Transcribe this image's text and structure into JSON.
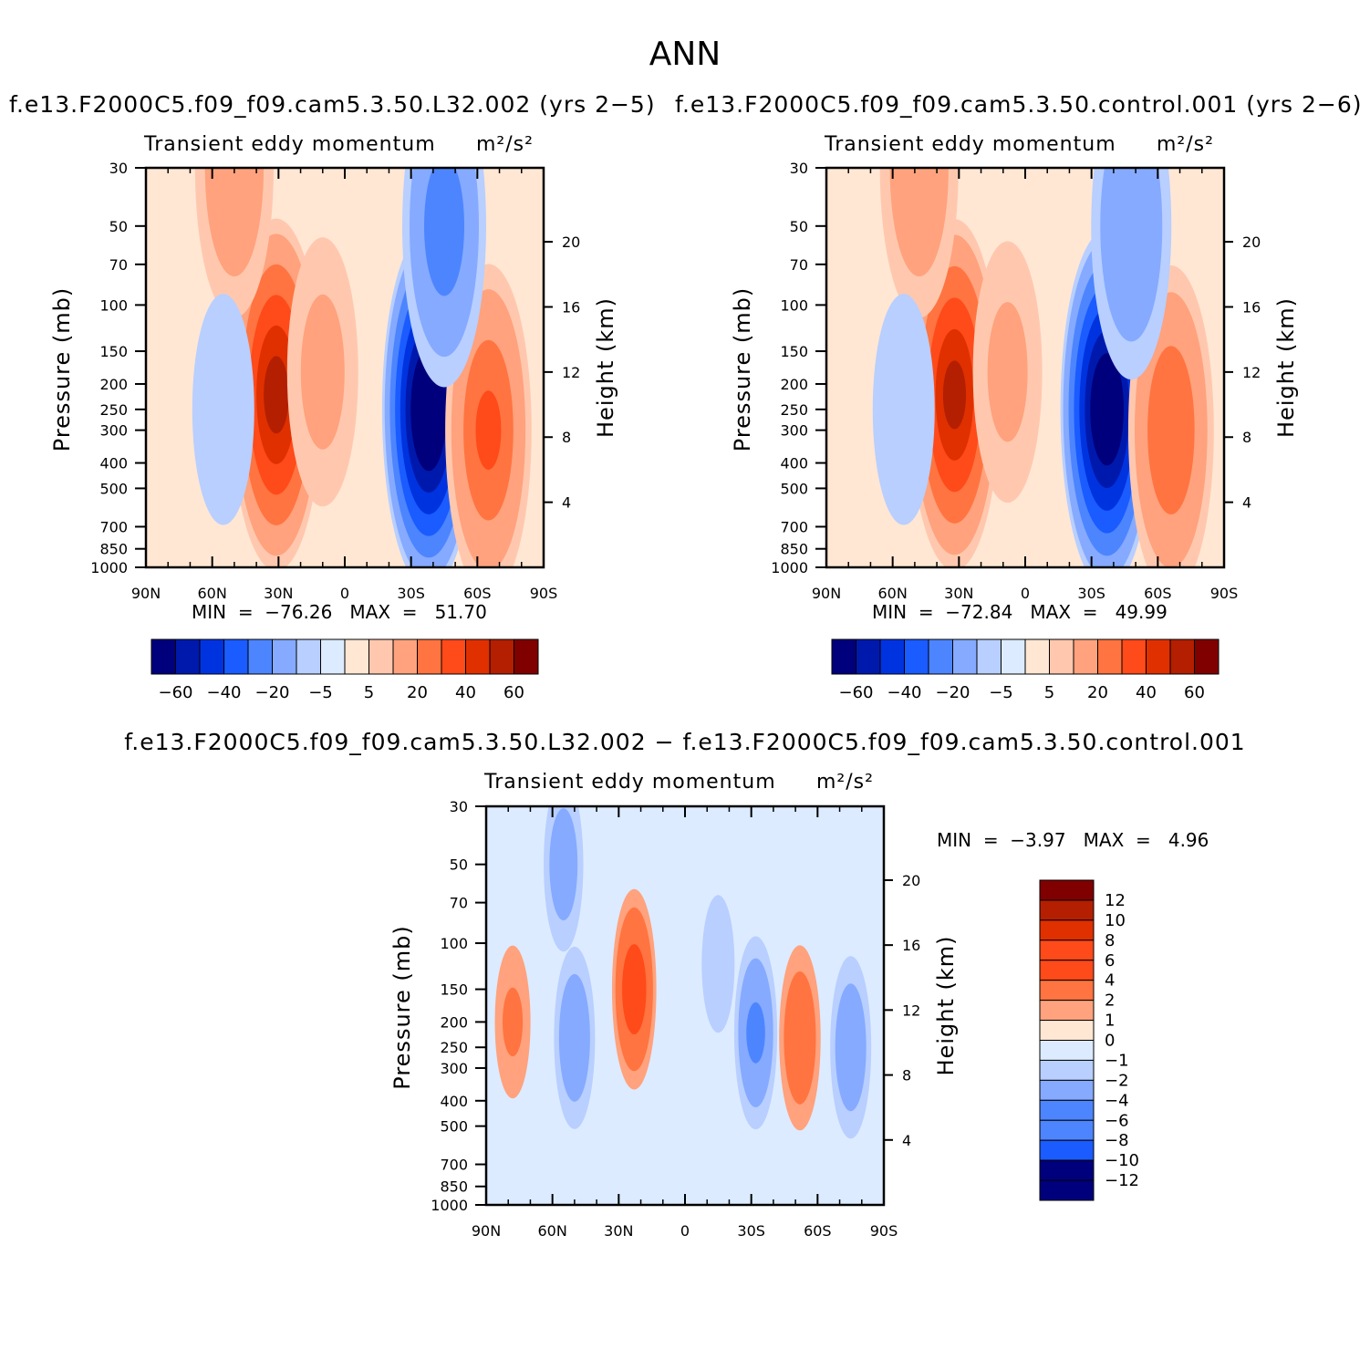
{
  "figure": {
    "title": "ANN"
  },
  "colors": {
    "diverging_16": [
      "#00007d",
      "#0019ad",
      "#0033e0",
      "#1a5cff",
      "#4d85ff",
      "#85aaff",
      "#b8cfff",
      "#dcebff",
      "#ffe7d4",
      "#ffc8ae",
      "#ffa27d",
      "#ff7440",
      "#ff4a1a",
      "#e03000",
      "#b31f00",
      "#800000"
    ],
    "bar_14": [
      "#800000",
      "#b31f00",
      "#e03000",
      "#ff4a1a",
      "#ff7440",
      "#ffa27d",
      "#ffe7d4",
      "#dcebff",
      "#b8cfff",
      "#85aaff",
      "#4d85ff",
      "#1a5cff",
      "#0019ad",
      "#00007d"
    ]
  },
  "chart_data": [
    {
      "type": "heatmap",
      "name": "panel-1",
      "title": "f.e13.F2000C5.f09_f09.cam5.3.50.L32.002  (yrs 2-5)",
      "subtitle": "Transient  eddy  momentum",
      "units": "m²/s²",
      "xlabel": "",
      "ylabel": "Pressure  (mb)",
      "y2label": "Height  (km)",
      "x_ticks": [
        "90N",
        "60N",
        "30N",
        "0",
        "30S",
        "60S",
        "90S"
      ],
      "y_ticks": [
        "30",
        "50",
        "70",
        "100",
        "150",
        "200",
        "250",
        "300",
        "400",
        "500",
        "700",
        "850",
        "1000"
      ],
      "y2_ticks": [
        "20",
        "16",
        "12",
        "8",
        "4"
      ],
      "ylim": [
        1000,
        30
      ],
      "y_scale": "log",
      "stats": {
        "min_label": "MIN  =",
        "min_value": "-76.26",
        "max_label": "MAX  =",
        "max_value": "51.70"
      },
      "colorbar": {
        "orientation": "horizontal",
        "labels": [
          "-60",
          "-40",
          "-20",
          "-5",
          "5",
          "20",
          "40",
          "60"
        ]
      },
      "features": [
        {
          "lat": 31,
          "p": 220,
          "value": 51.7
        },
        {
          "lat": -38,
          "p": 250,
          "value": -76.26
        },
        {
          "lat": -65,
          "p": 300,
          "value": 28
        },
        {
          "lat": 50,
          "p": 30,
          "value": 14
        },
        {
          "lat": -45,
          "p": 50,
          "value": -22
        },
        {
          "lat": 55,
          "p": 250,
          "value": -4
        },
        {
          "lat": 10,
          "p": 180,
          "value": 8
        }
      ]
    },
    {
      "type": "heatmap",
      "name": "panel-2",
      "title": "f.e13.F2000C5.f09_f09.cam5.3.50.control.001  (yrs 2-6)",
      "subtitle": "Transient  eddy  momentum",
      "units": "m²/s²",
      "xlabel": "",
      "ylabel": "Pressure  (mb)",
      "y2label": "Height  (km)",
      "x_ticks": [
        "90N",
        "60N",
        "30N",
        "0",
        "30S",
        "60S",
        "90S"
      ],
      "y_ticks": [
        "30",
        "50",
        "70",
        "100",
        "150",
        "200",
        "250",
        "300",
        "400",
        "500",
        "700",
        "850",
        "1000"
      ],
      "y2_ticks": [
        "20",
        "16",
        "12",
        "8",
        "4"
      ],
      "ylim": [
        1000,
        30
      ],
      "y_scale": "log",
      "stats": {
        "min_label": "MIN  =",
        "min_value": "-72.84",
        "max_label": "MAX  =",
        "max_value": "49.99"
      },
      "colorbar": {
        "orientation": "horizontal",
        "labels": [
          "-60",
          "-40",
          "-20",
          "-5",
          "5",
          "20",
          "40",
          "60"
        ]
      },
      "features": [
        {
          "lat": 32,
          "p": 220,
          "value": 49.99
        },
        {
          "lat": -37,
          "p": 250,
          "value": -72.84
        },
        {
          "lat": -66,
          "p": 300,
          "value": 26
        },
        {
          "lat": 48,
          "p": 30,
          "value": 14
        },
        {
          "lat": -48,
          "p": 50,
          "value": -16
        },
        {
          "lat": 55,
          "p": 250,
          "value": -4
        },
        {
          "lat": 8,
          "p": 180,
          "value": 7
        }
      ]
    },
    {
      "type": "heatmap",
      "name": "panel-diff",
      "title": "f.e13.F2000C5.f09_f09.cam5.3.50.L32.002  -  f.e13.F2000C5.f09_f09.cam5.3.50.control.001",
      "subtitle": "Transient  eddy  momentum",
      "units": "m²/s²",
      "xlabel": "",
      "ylabel": "Pressure  (mb)",
      "y2label": "Height  (km)",
      "x_ticks": [
        "90N",
        "60N",
        "30N",
        "0",
        "30S",
        "60S",
        "90S"
      ],
      "y_ticks": [
        "30",
        "50",
        "70",
        "100",
        "150",
        "200",
        "250",
        "300",
        "400",
        "500",
        "700",
        "850",
        "1000"
      ],
      "y2_ticks": [
        "20",
        "16",
        "12",
        "8",
        "4"
      ],
      "ylim": [
        1000,
        30
      ],
      "y_scale": "log",
      "stats": {
        "min_label": "MIN  =",
        "min_value": "-3.97",
        "max_label": "MAX  =",
        "max_value": "4.96"
      },
      "colorbar": {
        "orientation": "vertical",
        "labels": [
          "12",
          "10",
          "8",
          "6",
          "4",
          "2",
          "1",
          "0",
          "-1",
          "-2",
          "-4",
          "-6",
          "-8",
          "-10",
          "-12"
        ]
      },
      "features": [
        {
          "lat": 23,
          "p": 150,
          "value": 4.96
        },
        {
          "lat": 50,
          "p": 230,
          "value": -3.0
        },
        {
          "lat": -32,
          "p": 220,
          "value": -3.97
        },
        {
          "lat": -52,
          "p": 230,
          "value": 3.2
        },
        {
          "lat": -75,
          "p": 250,
          "value": -3.0
        },
        {
          "lat": 55,
          "p": 50,
          "value": -2.5
        },
        {
          "lat": 78,
          "p": 200,
          "value": 1.6
        },
        {
          "lat": -15,
          "p": 120,
          "value": -1.2
        }
      ]
    }
  ]
}
